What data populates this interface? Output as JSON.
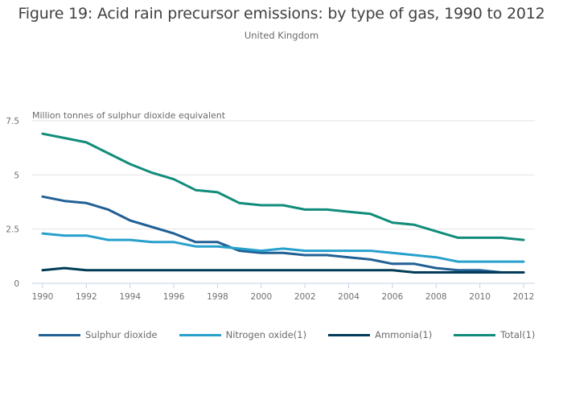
{
  "title": "Figure 19: Acid rain precursor emissions: by type of gas, 1990 to 2012",
  "subtitle": "United Kingdom",
  "chart_data": {
    "type": "line",
    "title": "Figure 19: Acid rain precursor emissions: by type of gas, 1990 to 2012",
    "subtitle": "United Kingdom",
    "xlabel": "",
    "ylabel": "Million tonnes of sulphur dioxide equivalent",
    "x": [
      1990,
      1991,
      1992,
      1993,
      1994,
      1995,
      1996,
      1997,
      1998,
      1999,
      2000,
      2001,
      2002,
      2003,
      2004,
      2005,
      2006,
      2007,
      2008,
      2009,
      2010,
      2011,
      2012
    ],
    "xticks": [
      "1990",
      "1992",
      "1994",
      "1996",
      "1998",
      "2000",
      "2002",
      "2004",
      "2006",
      "2008",
      "2010",
      "2012"
    ],
    "ylim": [
      0,
      7.5
    ],
    "yticks": [
      0,
      2.5,
      5,
      7.5
    ],
    "ytick_labels": [
      "0",
      "2.5",
      "5",
      "7.5"
    ],
    "grid": true,
    "legend_position": "bottom",
    "series": [
      {
        "name": "Sulphur dioxide",
        "color": "#206095",
        "values": [
          4.0,
          3.8,
          3.7,
          3.4,
          2.9,
          2.6,
          2.3,
          1.9,
          1.9,
          1.5,
          1.4,
          1.4,
          1.3,
          1.3,
          1.2,
          1.1,
          0.9,
          0.9,
          0.7,
          0.6,
          0.6,
          0.5,
          0.5
        ]
      },
      {
        "name": "Nitrogen oxide(1)",
        "color": "#27a0cc",
        "values": [
          2.3,
          2.2,
          2.2,
          2.0,
          2.0,
          1.9,
          1.9,
          1.7,
          1.7,
          1.6,
          1.5,
          1.6,
          1.5,
          1.5,
          1.5,
          1.5,
          1.4,
          1.3,
          1.2,
          1.0,
          1.0,
          1.0,
          1.0
        ]
      },
      {
        "name": "Ammonia(1)",
        "color": "#003c57",
        "values": [
          0.6,
          0.7,
          0.6,
          0.6,
          0.6,
          0.6,
          0.6,
          0.6,
          0.6,
          0.6,
          0.6,
          0.6,
          0.6,
          0.6,
          0.6,
          0.6,
          0.6,
          0.5,
          0.5,
          0.5,
          0.5,
          0.5,
          0.5
        ]
      },
      {
        "name": "Total(1)",
        "color": "#118c7b",
        "values": [
          6.9,
          6.7,
          6.5,
          6.0,
          5.5,
          5.1,
          4.8,
          4.3,
          4.2,
          3.7,
          3.6,
          3.6,
          3.4,
          3.4,
          3.3,
          3.2,
          2.8,
          2.7,
          2.4,
          2.1,
          2.1,
          2.1,
          2.0
        ]
      }
    ]
  }
}
